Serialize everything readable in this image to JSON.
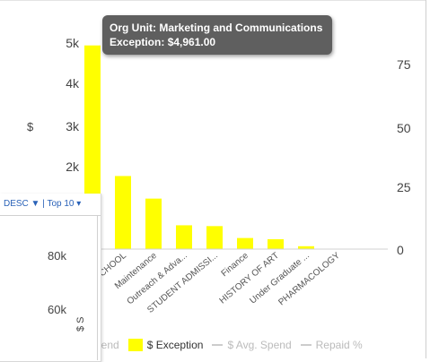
{
  "chart_data": {
    "type": "bar",
    "categories": [
      "...",
      "LAW SCHOOL",
      "Maintenance",
      "Outreach & Adva...",
      "STUDENT ADMISSI...",
      "Finance",
      "HISTORY OF ART",
      "Under Graduate ...",
      "PHARMACOLOGY"
    ],
    "series": [
      {
        "name": "$ Exception",
        "values": [
          4961,
          1780,
          1230,
          580,
          560,
          270,
          240,
          70,
          10
        ]
      }
    ],
    "ylabel": "$",
    "y_ticks_left": [
      "5k",
      "4k",
      "3k",
      "2k"
    ],
    "ylim": [
      0,
      5500
    ],
    "y_ticks_right": [
      "75",
      "50",
      "25",
      "0"
    ],
    "y2lim": [
      0,
      100
    ],
    "bar_color": "#ffff00"
  },
  "tooltip": {
    "line1_key": "Org Unit:",
    "line1_value": "Marketing and Communications",
    "line2_key": "Exception:",
    "line2_value": "$4,961.00"
  },
  "legend": {
    "spend": "$ Spend",
    "exception": "$ Exception",
    "avg_spend": "$ Avg. Spend",
    "repaid": "Repaid %"
  },
  "subchart": {
    "sort_label": "DESC ▼",
    "separator": "|",
    "top_label": "Top 10",
    "y_ticks": [
      "80k",
      "60k"
    ],
    "ytitle": "$ S"
  }
}
